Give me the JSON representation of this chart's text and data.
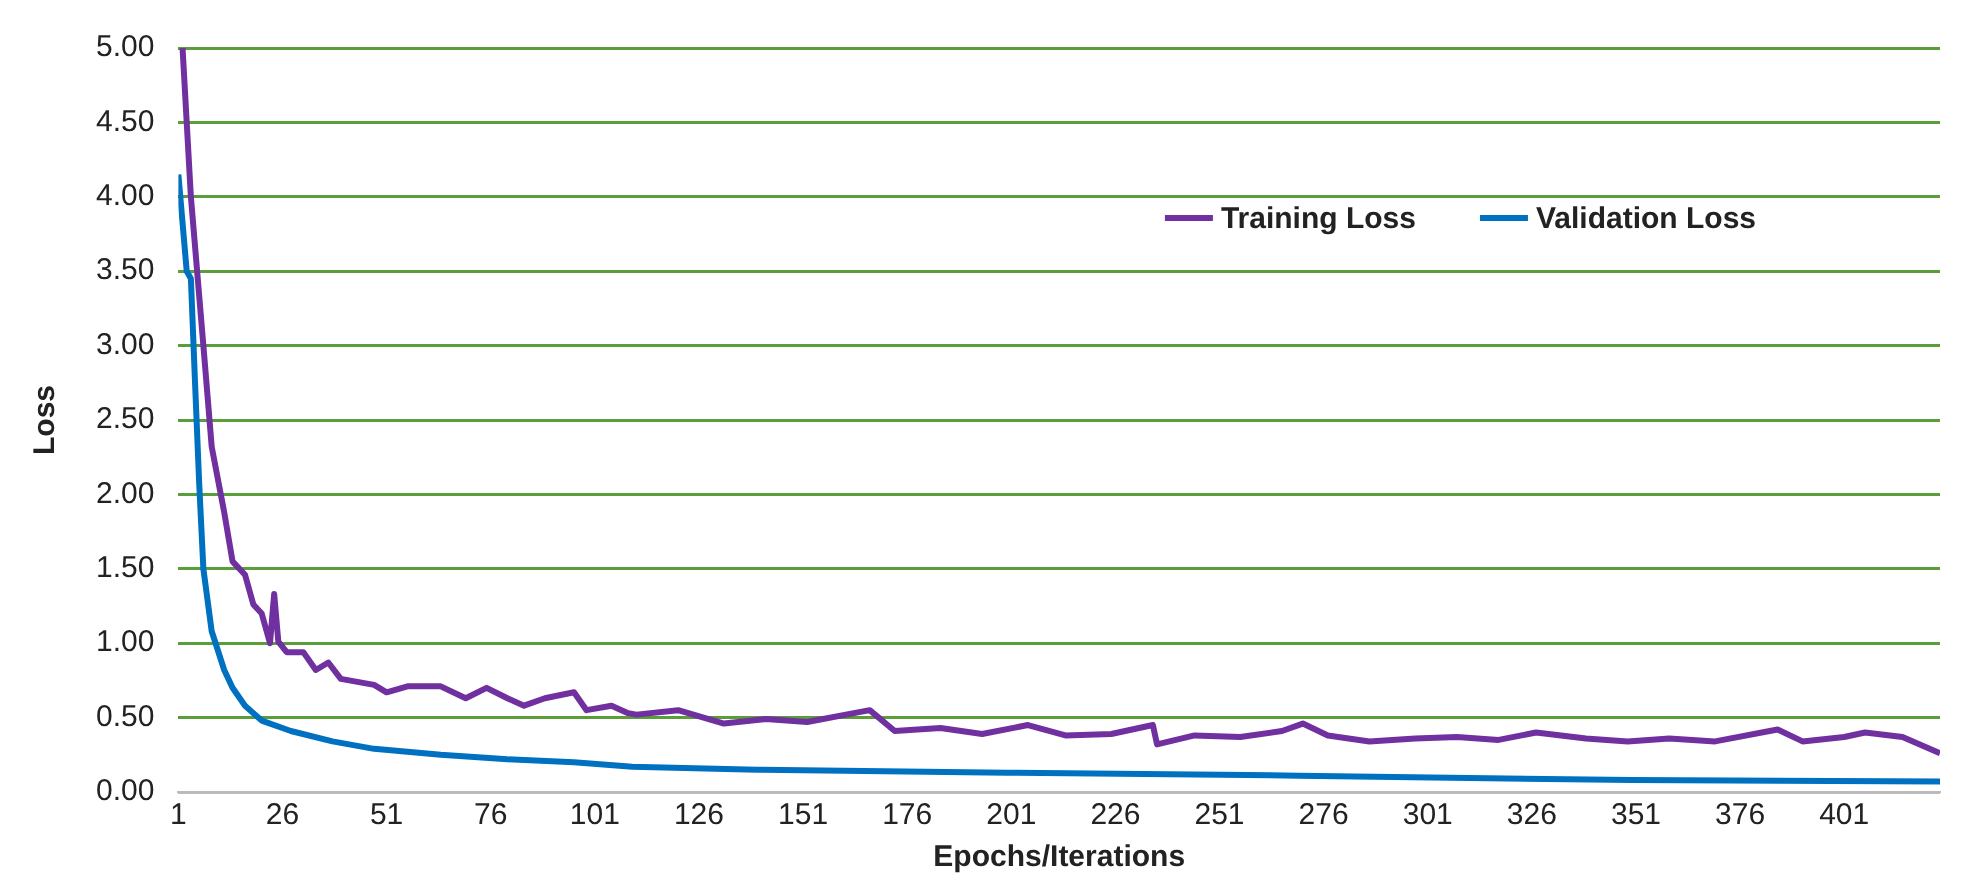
{
  "chart_data": {
    "type": "line",
    "xlabel": "Epochs/Iterations",
    "ylabel": "Loss",
    "xlim": [
      1,
      424
    ],
    "xticks": [
      1,
      26,
      51,
      76,
      101,
      126,
      151,
      176,
      201,
      226,
      251,
      276,
      301,
      326,
      351,
      376,
      401
    ],
    "ylim": [
      0,
      5
    ],
    "yticks": [
      {
        "value": 0,
        "label": "0.00"
      },
      {
        "value": 0.5,
        "label": "0.50"
      },
      {
        "value": 1,
        "label": "1.00"
      },
      {
        "value": 1.5,
        "label": "1.50"
      },
      {
        "value": 2,
        "label": "2.00"
      },
      {
        "value": 2.5,
        "label": "2.50"
      },
      {
        "value": 3,
        "label": "3.00"
      },
      {
        "value": 3.5,
        "label": "3.50"
      },
      {
        "value": 4,
        "label": "4.00"
      },
      {
        "value": 4.5,
        "label": "4.50"
      },
      {
        "value": 5,
        "label": "5.00"
      }
    ],
    "grid": "y",
    "legend": "right",
    "marker": "none",
    "line_style": "solid",
    "series": [
      {
        "name": "Training Loss",
        "color": "#7030a0",
        "x": [
          2,
          4,
          7,
          9,
          12,
          14,
          17,
          19,
          21,
          23,
          24,
          25,
          27,
          31,
          34,
          37,
          40,
          48,
          51,
          56,
          64,
          70,
          75,
          80,
          84,
          89,
          96,
          99,
          105,
          109,
          111,
          121,
          132,
          142,
          152,
          167,
          173,
          184,
          194,
          205,
          214,
          225,
          235,
          236,
          245,
          256,
          266,
          271,
          277,
          287,
          298,
          308,
          318,
          327,
          339,
          349,
          359,
          370,
          385,
          391,
          401,
          406,
          415,
          424
        ],
        "values": [
          5.0,
          4.0,
          3.0,
          2.32,
          1.88,
          1.55,
          1.46,
          1.26,
          1.2,
          1.0,
          1.33,
          1.01,
          0.94,
          0.94,
          0.82,
          0.87,
          0.76,
          0.72,
          0.67,
          0.71,
          0.71,
          0.63,
          0.7,
          0.63,
          0.58,
          0.63,
          0.67,
          0.55,
          0.58,
          0.53,
          0.52,
          0.55,
          0.46,
          0.49,
          0.47,
          0.55,
          0.41,
          0.43,
          0.39,
          0.45,
          0.38,
          0.39,
          0.45,
          0.32,
          0.38,
          0.37,
          0.41,
          0.46,
          0.38,
          0.34,
          0.36,
          0.37,
          0.35,
          0.4,
          0.36,
          0.34,
          0.36,
          0.34,
          0.42,
          0.34,
          0.37,
          0.4,
          0.37,
          0.26
        ]
      },
      {
        "name": "Validation Loss",
        "color": "#0070c0",
        "x": [
          1,
          3,
          4,
          5,
          6,
          7,
          9,
          12,
          14,
          17,
          21,
          28,
          38,
          48,
          64,
          80,
          96,
          110,
          140,
          200,
          270,
          350,
          424
        ],
        "values": [
          4.15,
          3.5,
          3.45,
          2.75,
          2.07,
          1.5,
          1.08,
          0.82,
          0.7,
          0.58,
          0.48,
          0.41,
          0.34,
          0.29,
          0.25,
          0.22,
          0.2,
          0.17,
          0.15,
          0.13,
          0.11,
          0.08,
          0.07
        ]
      }
    ]
  }
}
